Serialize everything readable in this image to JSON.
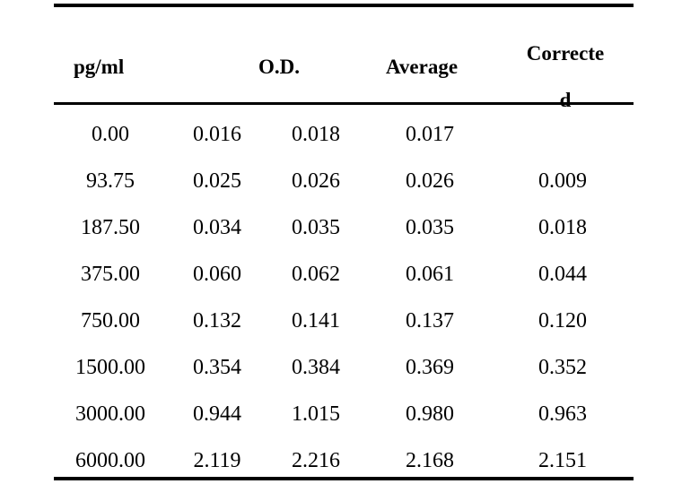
{
  "header": {
    "concentration": "pg/ml",
    "od": "O.D.",
    "average": "Average",
    "corrected_line1": "Correcte",
    "corrected_line2": "d"
  },
  "rows": [
    {
      "conc": "0.00",
      "od1": "0.016",
      "od2": "0.018",
      "avg": "0.017",
      "corr": ""
    },
    {
      "conc": "93.75",
      "od1": "0.025",
      "od2": "0.026",
      "avg": "0.026",
      "corr": "0.009"
    },
    {
      "conc": "187.50",
      "od1": "0.034",
      "od2": "0.035",
      "avg": "0.035",
      "corr": "0.018"
    },
    {
      "conc": "375.00",
      "od1": "0.060",
      "od2": "0.062",
      "avg": "0.061",
      "corr": "0.044"
    },
    {
      "conc": "750.00",
      "od1": "0.132",
      "od2": "0.141",
      "avg": "0.137",
      "corr": "0.120"
    },
    {
      "conc": "1500.00",
      "od1": "0.354",
      "od2": "0.384",
      "avg": "0.369",
      "corr": "0.352"
    },
    {
      "conc": "3000.00",
      "od1": "0.944",
      "od2": "1.015",
      "avg": "0.980",
      "corr": "0.963"
    },
    {
      "conc": "6000.00",
      "od1": "2.119",
      "od2": "2.216",
      "avg": "2.168",
      "corr": "2.151"
    }
  ]
}
